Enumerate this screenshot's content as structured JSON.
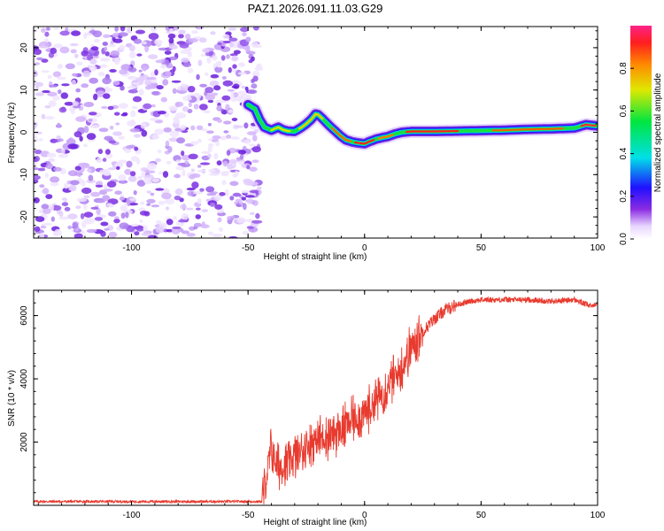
{
  "title": "PAZ1.2026.091.11.03.G29",
  "chart_data": [
    {
      "type": "heatmap",
      "name": "spectrogram",
      "xlabel": "Height of straight line (km)",
      "ylabel": "Frequency (Hz)",
      "xlim": [
        -142,
        100
      ],
      "ylim": [
        -25,
        25
      ],
      "xticks": [
        -100,
        -50,
        0,
        50,
        100
      ],
      "yticks": [
        -20,
        -10,
        0,
        10,
        20
      ],
      "noise_region_x": [
        -142,
        -45
      ],
      "ridge": {
        "x": [
          -50,
          -47,
          -45,
          -43,
          -40,
          -37,
          -35,
          -33,
          -30,
          -27,
          -25,
          -23,
          -21,
          -20,
          -18,
          -15,
          -12,
          -10,
          -8,
          -5,
          -3,
          0,
          2,
          5,
          8,
          10,
          13,
          16,
          20,
          25,
          30,
          40,
          50,
          60,
          70,
          80,
          90,
          95,
          100
        ],
        "y": [
          6.5,
          5.5,
          3,
          1.2,
          0.5,
          1.2,
          0.6,
          0.3,
          0.2,
          1.2,
          2.0,
          3.0,
          4.3,
          4.2,
          3.2,
          1.5,
          0.0,
          -1.0,
          -1.8,
          -2.3,
          -2.5,
          -2.7,
          -2.2,
          -1.6,
          -1.2,
          -1.0,
          -0.4,
          0.0,
          0.2,
          0.2,
          0.2,
          0.3,
          0.4,
          0.5,
          0.7,
          0.8,
          1.0,
          1.8,
          1.5
        ]
      },
      "colorbar": {
        "label": "Normalized spectral amplitude",
        "ticks": [
          "0.0",
          "0.2",
          "0.4",
          "0.6",
          "0.8"
        ]
      }
    },
    {
      "type": "line",
      "name": "snr",
      "xlabel": "Height of straight line (km)",
      "ylabel": "SNR (10 * v/v)",
      "xlim": [
        -142,
        100
      ],
      "ylim": [
        0,
        6800
      ],
      "xticks": [
        -100,
        -50,
        0,
        50,
        100
      ],
      "yticks": [
        2000,
        4000,
        6000
      ],
      "color": "#e83a2e",
      "envelope": {
        "x": [
          -142,
          -44,
          -42,
          -40,
          -38,
          -35,
          -30,
          -25,
          -20,
          -15,
          -10,
          -5,
          0,
          5,
          10,
          15,
          20,
          25,
          30,
          35,
          40,
          45,
          50,
          60,
          70,
          80,
          90,
          97,
          100
        ],
        "y": [
          120,
          120,
          900,
          1800,
          1300,
          1200,
          1500,
          1900,
          2100,
          2200,
          2400,
          2700,
          2900,
          3300,
          3800,
          4200,
          5000,
          5500,
          5900,
          6200,
          6350,
          6450,
          6500,
          6500,
          6500,
          6450,
          6500,
          6300,
          6400
        ]
      }
    }
  ]
}
